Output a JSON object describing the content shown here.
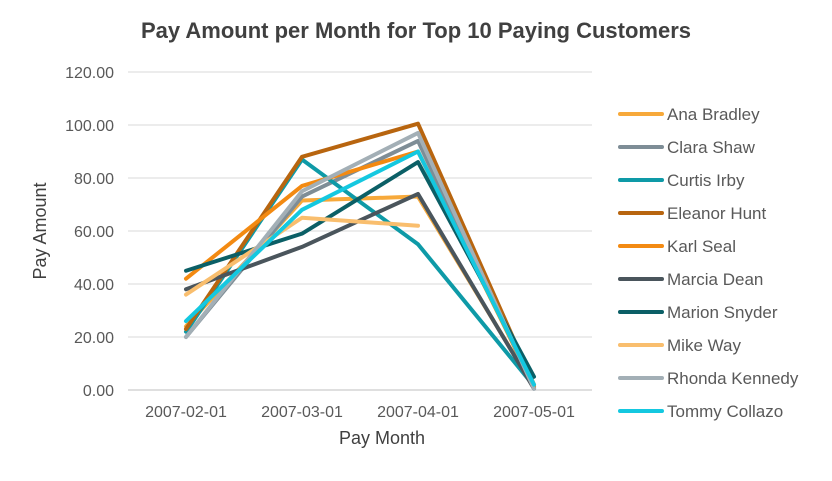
{
  "chart_data": {
    "type": "line",
    "title": "Pay Amount per Month for Top 10 Paying Customers",
    "xlabel": "Pay Month",
    "ylabel": "Pay Amount",
    "categories": [
      "2007-02-01",
      "2007-03-01",
      "2007-04-01",
      "2007-05-01"
    ],
    "ylim": [
      0,
      120
    ],
    "yticks": [
      "0.00",
      "20.00",
      "40.00",
      "60.00",
      "80.00",
      "100.00",
      "120.00"
    ],
    "grid": true,
    "legend_position": "right",
    "series": [
      {
        "name": "Ana Bradley",
        "color": "#F7A93A",
        "values": [
          24,
          71.5,
          73,
          1
        ]
      },
      {
        "name": "Clara Shaw",
        "color": "#7E8D96",
        "values": [
          20,
          73,
          94,
          0.5
        ]
      },
      {
        "name": "Curtis Irby",
        "color": "#0E9AA7",
        "values": [
          22,
          87,
          55,
          1.5
        ]
      },
      {
        "name": "Eleanor Hunt",
        "color": "#B8650F",
        "values": [
          23,
          88,
          100.5,
          2
        ]
      },
      {
        "name": "Karl Seal",
        "color": "#F38A12",
        "values": [
          42,
          77,
          90,
          1.5
        ]
      },
      {
        "name": "Marcia Dean",
        "color": "#4A555C",
        "values": [
          38,
          54,
          74,
          0.5
        ]
      },
      {
        "name": "Marion Snyder",
        "color": "#0B5F66",
        "values": [
          45,
          59,
          86,
          5
        ]
      },
      {
        "name": "Mike Way",
        "color": "#F9BE6E",
        "values": [
          36,
          65,
          62,
          null
        ]
      },
      {
        "name": "Rhonda Kennedy",
        "color": "#A3AFB6",
        "values": [
          20,
          75,
          97,
          0.5
        ]
      },
      {
        "name": "Tommy Collazo",
        "color": "#14C8E0",
        "values": [
          26,
          68,
          90,
          2
        ]
      }
    ]
  }
}
